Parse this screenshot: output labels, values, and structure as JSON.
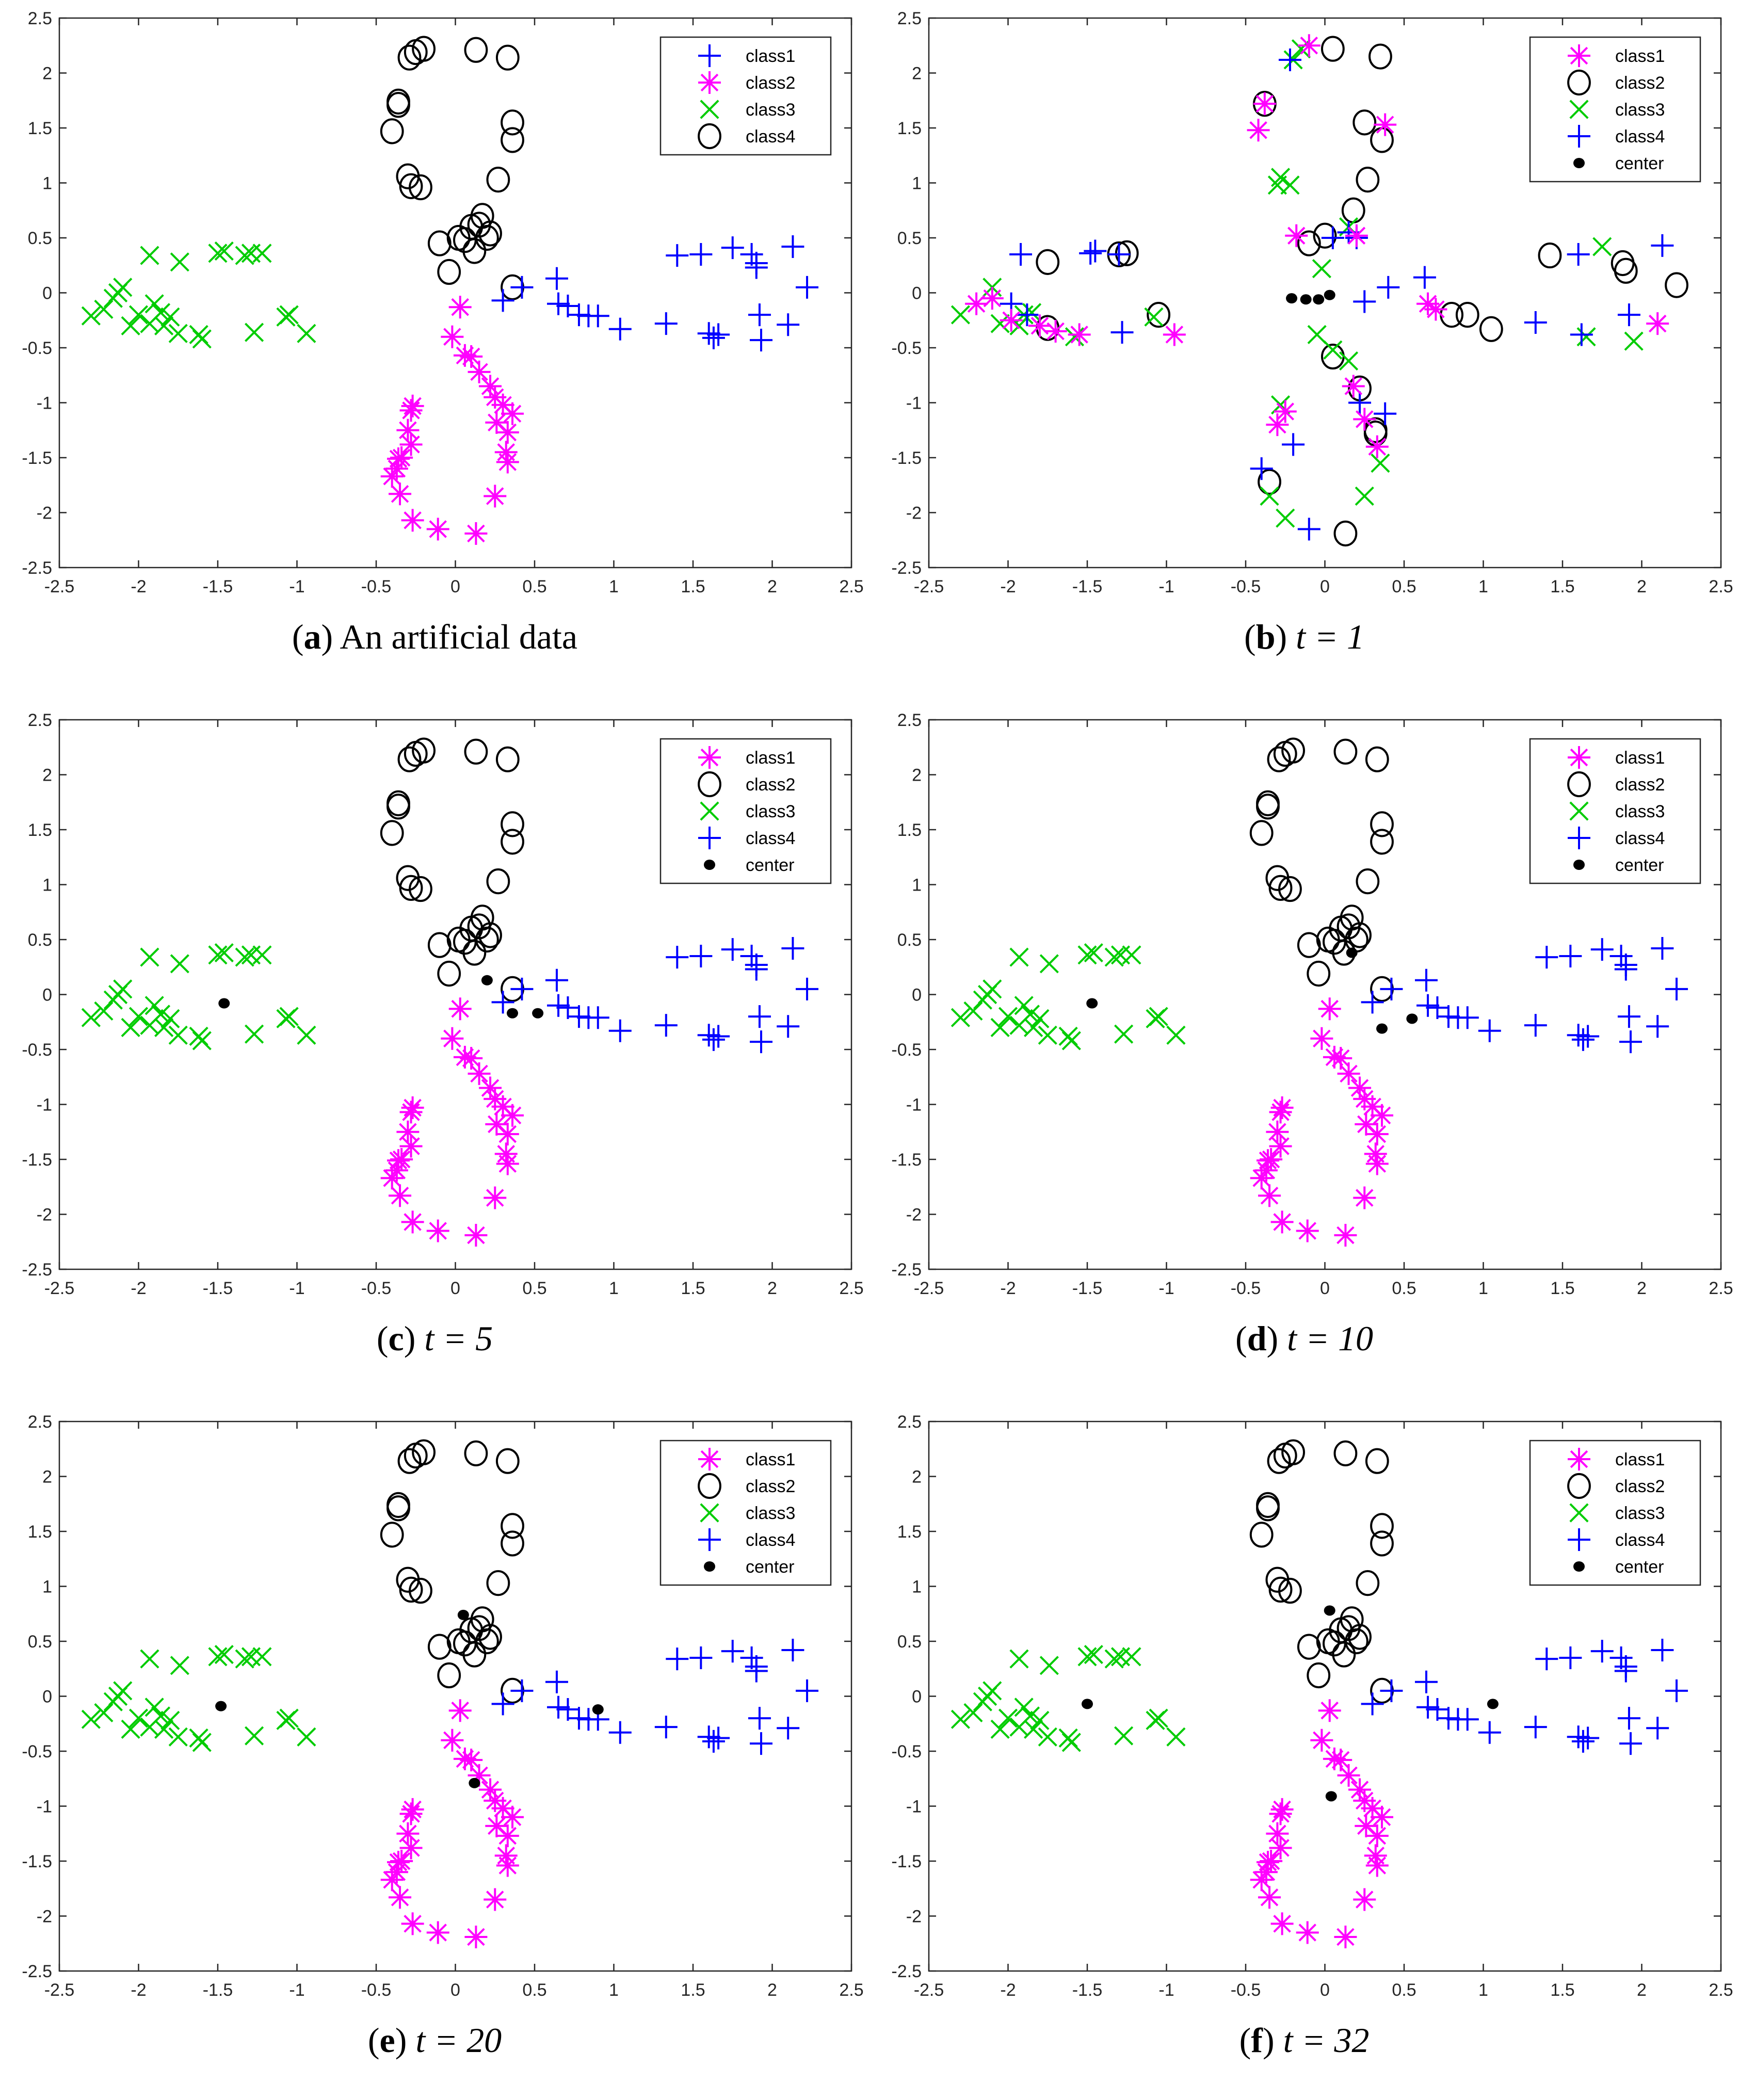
{
  "figure": {
    "panels": [
      {
        "letter": "a",
        "caption_rest": "An artificial data",
        "caption_t": "",
        "legend_key": "A"
      },
      {
        "letter": "b",
        "caption_rest": "",
        "caption_t": "t = 1",
        "legend_key": "B"
      },
      {
        "letter": "c",
        "caption_rest": "",
        "caption_t": "t = 5",
        "legend_key": "B"
      },
      {
        "letter": "d",
        "caption_rest": "",
        "caption_t": "t = 10",
        "legend_key": "B"
      },
      {
        "letter": "e",
        "caption_rest": "",
        "caption_t": "t = 20",
        "legend_key": "B"
      },
      {
        "letter": "f",
        "caption_rest": "",
        "caption_t": "t = 32",
        "legend_key": "B"
      }
    ]
  },
  "colors": {
    "magenta": "#ff00ff",
    "green": "#00cc00",
    "blue": "#0000ff",
    "black": "#000000"
  },
  "chart_data": {
    "type": "scatter",
    "xlim": [
      -2.5,
      2.5
    ],
    "ylim": [
      -2.5,
      2.5
    ],
    "xticks": [
      "-2.5",
      "-2",
      "-1.5",
      "-1",
      "-0.5",
      "0",
      "0.5",
      "1",
      "1.5",
      "2",
      "2.5"
    ],
    "yticks": [
      "2.5",
      "2",
      "1.5",
      "1",
      "0.5",
      "0",
      "-0.5",
      "-1",
      "-1.5",
      "-2",
      "-2.5"
    ],
    "legends": {
      "A": [
        {
          "label": "class1",
          "marker": "plus",
          "color": "#0000ff"
        },
        {
          "label": "class2",
          "marker": "star",
          "color": "#ff00ff"
        },
        {
          "label": "class3",
          "marker": "x",
          "color": "#00cc00"
        },
        {
          "label": "class4",
          "marker": "circle",
          "color": "#000000"
        }
      ],
      "B": [
        {
          "label": "class1",
          "marker": "star",
          "color": "#ff00ff"
        },
        {
          "label": "class2",
          "marker": "circle",
          "color": "#000000"
        },
        {
          "label": "class3",
          "marker": "x",
          "color": "#00cc00"
        },
        {
          "label": "class4",
          "marker": "plus",
          "color": "#0000ff"
        },
        {
          "label": "center",
          "marker": "dot",
          "color": "#000000"
        }
      ]
    },
    "clusters": {
      "circle": [
        [
          -0.29,
          2.14
        ],
        [
          -0.25,
          2.19
        ],
        [
          -0.2,
          2.22
        ],
        [
          0.13,
          2.21
        ],
        [
          0.33,
          2.14
        ],
        [
          -0.36,
          1.74
        ],
        [
          -0.36,
          1.71
        ],
        [
          -0.4,
          1.47
        ],
        [
          0.36,
          1.55
        ],
        [
          0.36,
          1.39
        ],
        [
          -0.3,
          1.06
        ],
        [
          -0.28,
          0.97
        ],
        [
          -0.22,
          0.96
        ],
        [
          0.27,
          1.03
        ],
        [
          -0.1,
          0.45
        ],
        [
          0.02,
          0.5
        ],
        [
          0.06,
          0.48
        ],
        [
          0.1,
          0.6
        ],
        [
          0.15,
          0.62
        ],
        [
          0.17,
          0.7
        ],
        [
          0.2,
          0.5
        ],
        [
          0.22,
          0.54
        ],
        [
          0.12,
          0.38
        ],
        [
          -0.04,
          0.19
        ],
        [
          0.36,
          0.05
        ]
      ],
      "star": [
        [
          0.03,
          -0.13
        ],
        [
          -0.02,
          -0.4
        ],
        [
          0.06,
          -0.57
        ],
        [
          0.1,
          -0.58
        ],
        [
          0.15,
          -0.72
        ],
        [
          0.22,
          -0.85
        ],
        [
          0.25,
          -0.95
        ],
        [
          0.3,
          -1.02
        ],
        [
          0.36,
          -1.1
        ],
        [
          0.26,
          -1.18
        ],
        [
          0.33,
          -1.27
        ],
        [
          0.32,
          -1.45
        ],
        [
          0.33,
          -1.54
        ],
        [
          0.25,
          -1.85
        ],
        [
          0.13,
          -2.19
        ],
        [
          -0.11,
          -2.15
        ],
        [
          -0.27,
          -2.07
        ],
        [
          -0.35,
          -1.83
        ],
        [
          -0.4,
          -1.67
        ],
        [
          -0.37,
          -1.6
        ],
        [
          -0.36,
          -1.51
        ],
        [
          -0.34,
          -1.5
        ],
        [
          -0.28,
          -1.38
        ],
        [
          -0.3,
          -1.25
        ],
        [
          -0.28,
          -1.07
        ],
        [
          -0.27,
          -1.03
        ]
      ],
      "x": [
        [
          -2.3,
          -0.21
        ],
        [
          -2.22,
          -0.15
        ],
        [
          -2.16,
          -0.05
        ],
        [
          -2.1,
          0.05
        ],
        [
          -2.13,
          0.0
        ],
        [
          -2.05,
          -0.3
        ],
        [
          -2.0,
          -0.2
        ],
        [
          -1.93,
          -0.28
        ],
        [
          -1.9,
          -0.1
        ],
        [
          -1.86,
          -0.18
        ],
        [
          -1.84,
          -0.3
        ],
        [
          -1.8,
          -0.22
        ],
        [
          -1.75,
          -0.37
        ],
        [
          -1.6,
          -0.42
        ],
        [
          -1.62,
          -0.38
        ],
        [
          -1.93,
          0.34
        ],
        [
          -1.74,
          0.28
        ],
        [
          -1.5,
          0.36
        ],
        [
          -1.46,
          0.38
        ],
        [
          -1.33,
          0.34
        ],
        [
          -1.29,
          0.36
        ],
        [
          -1.22,
          0.36
        ],
        [
          -1.27,
          -0.36
        ],
        [
          -1.07,
          -0.22
        ],
        [
          -1.05,
          -0.2
        ],
        [
          -0.94,
          -0.37
        ]
      ],
      "plus": [
        [
          0.3,
          -0.07
        ],
        [
          0.42,
          0.05
        ],
        [
          0.64,
          0.13
        ],
        [
          0.65,
          -0.1
        ],
        [
          0.71,
          -0.12
        ],
        [
          0.78,
          -0.2
        ],
        [
          0.84,
          -0.21
        ],
        [
          0.9,
          -0.21
        ],
        [
          1.04,
          -0.33
        ],
        [
          1.33,
          -0.28
        ],
        [
          1.4,
          0.34
        ],
        [
          1.55,
          0.35
        ],
        [
          1.6,
          -0.37
        ],
        [
          1.63,
          -0.41
        ],
        [
          1.66,
          -0.38
        ],
        [
          1.75,
          0.41
        ],
        [
          1.87,
          0.35
        ],
        [
          1.9,
          0.27
        ],
        [
          1.9,
          0.23
        ],
        [
          1.92,
          -0.2
        ],
        [
          1.93,
          -0.43
        ],
        [
          2.1,
          -0.29
        ],
        [
          2.13,
          0.42
        ],
        [
          2.22,
          0.05
        ]
      ]
    },
    "panel_b_points": {
      "star": [
        [
          -0.1,
          2.25
        ],
        [
          -0.38,
          1.72
        ],
        [
          -0.42,
          1.48
        ],
        [
          0.38,
          1.53
        ],
        [
          -0.18,
          0.52
        ],
        [
          0.2,
          0.52
        ],
        [
          -2.2,
          -0.1
        ],
        [
          -2.1,
          -0.05
        ],
        [
          -1.98,
          -0.25
        ],
        [
          -1.8,
          -0.3
        ],
        [
          -1.7,
          -0.35
        ],
        [
          -1.55,
          -0.38
        ],
        [
          -0.95,
          -0.38
        ],
        [
          0.65,
          -0.1
        ],
        [
          0.7,
          -0.15
        ],
        [
          2.1,
          -0.28
        ],
        [
          0.18,
          -0.85
        ],
        [
          0.25,
          -1.15
        ],
        [
          -0.3,
          -1.2
        ],
        [
          -0.25,
          -1.08
        ],
        [
          0.33,
          -1.4
        ]
      ],
      "circle": [
        [
          0.05,
          2.22
        ],
        [
          0.35,
          2.15
        ],
        [
          -0.38,
          1.72
        ],
        [
          0.25,
          1.55
        ],
        [
          0.36,
          1.39
        ],
        [
          0.27,
          1.03
        ],
        [
          0.18,
          0.75
        ],
        [
          0.0,
          0.52
        ],
        [
          -0.1,
          0.45
        ],
        [
          -1.75,
          0.28
        ],
        [
          -1.3,
          0.35
        ],
        [
          -1.25,
          0.36
        ],
        [
          -1.75,
          -0.32
        ],
        [
          -1.05,
          -0.2
        ],
        [
          0.8,
          -0.2
        ],
        [
          0.9,
          -0.2
        ],
        [
          1.05,
          -0.33
        ],
        [
          1.42,
          0.34
        ],
        [
          1.88,
          0.27
        ],
        [
          1.9,
          0.2
        ],
        [
          2.22,
          0.07
        ],
        [
          0.05,
          -0.58
        ],
        [
          0.22,
          -0.87
        ],
        [
          0.32,
          -1.25
        ],
        [
          0.32,
          -1.28
        ],
        [
          -0.35,
          -1.72
        ],
        [
          0.13,
          -2.19
        ]
      ],
      "x": [
        [
          -0.15,
          2.22
        ],
        [
          -0.2,
          2.12
        ],
        [
          -0.28,
          1.05
        ],
        [
          -0.22,
          0.98
        ],
        [
          -0.3,
          0.98
        ],
        [
          0.15,
          0.6
        ],
        [
          -0.02,
          0.22
        ],
        [
          -2.3,
          -0.2
        ],
        [
          -2.1,
          0.05
        ],
        [
          -2.05,
          -0.28
        ],
        [
          -1.93,
          -0.3
        ],
        [
          -1.9,
          -0.2
        ],
        [
          -1.85,
          -0.18
        ],
        [
          -1.58,
          -0.4
        ],
        [
          -1.08,
          -0.22
        ],
        [
          1.75,
          0.42
        ],
        [
          1.65,
          -0.4
        ],
        [
          1.95,
          -0.44
        ],
        [
          -0.05,
          -0.38
        ],
        [
          0.05,
          -0.52
        ],
        [
          0.15,
          -0.62
        ],
        [
          -0.28,
          -1.02
        ],
        [
          0.35,
          -1.55
        ],
        [
          -0.35,
          -1.85
        ],
        [
          -0.25,
          -2.05
        ],
        [
          0.25,
          -1.85
        ]
      ],
      "plus": [
        [
          -0.22,
          2.12
        ],
        [
          -1.92,
          0.35
        ],
        [
          -1.45,
          0.38
        ],
        [
          -1.48,
          0.36
        ],
        [
          -1.3,
          0.35
        ],
        [
          -1.98,
          -0.1
        ],
        [
          -1.88,
          -0.2
        ],
        [
          -1.28,
          -0.36
        ],
        [
          0.15,
          0.55
        ],
        [
          0.2,
          0.5
        ],
        [
          0.05,
          0.5
        ],
        [
          0.25,
          -0.08
        ],
        [
          0.4,
          0.05
        ],
        [
          0.63,
          0.14
        ],
        [
          1.33,
          -0.27
        ],
        [
          1.6,
          0.35
        ],
        [
          1.62,
          -0.38
        ],
        [
          1.92,
          -0.2
        ],
        [
          2.13,
          0.43
        ],
        [
          0.22,
          -1.0
        ],
        [
          0.38,
          -1.1
        ],
        [
          -0.2,
          -1.38
        ],
        [
          -0.4,
          -1.6
        ],
        [
          -0.1,
          -2.15
        ]
      ],
      "dot": [
        [
          -0.21,
          -0.05
        ],
        [
          -0.12,
          -0.06
        ],
        [
          -0.04,
          -0.06
        ],
        [
          0.03,
          -0.02
        ]
      ]
    },
    "centers": {
      "c": [
        [
          -1.46,
          -0.08
        ],
        [
          0.2,
          0.13
        ],
        [
          0.36,
          -0.17
        ],
        [
          0.52,
          -0.17
        ]
      ],
      "d": [
        [
          -1.47,
          -0.08
        ],
        [
          0.17,
          0.38
        ],
        [
          0.36,
          -0.31
        ],
        [
          0.55,
          -0.22
        ]
      ],
      "e": [
        [
          -1.48,
          -0.09
        ],
        [
          0.05,
          0.74
        ],
        [
          0.12,
          -0.79
        ],
        [
          0.9,
          -0.12
        ]
      ],
      "f": [
        [
          -1.5,
          -0.07
        ],
        [
          0.03,
          0.78
        ],
        [
          0.04,
          -0.91
        ],
        [
          1.06,
          -0.07
        ]
      ]
    }
  }
}
